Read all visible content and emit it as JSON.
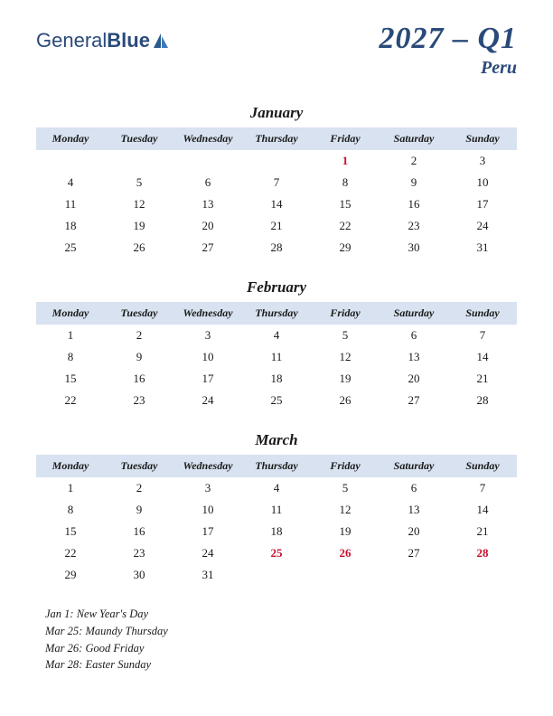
{
  "logo": {
    "part1": "General",
    "part2": "Blue"
  },
  "title": "2027 – Q1",
  "subtitle": "Peru",
  "colors": {
    "header_bg": "#d8e2f0",
    "accent": "#2a4a7a",
    "holiday": "#c8102e",
    "text": "#1a1a1a",
    "background": "#ffffff"
  },
  "day_headers": [
    "Monday",
    "Tuesday",
    "Wednesday",
    "Thursday",
    "Friday",
    "Saturday",
    "Sunday"
  ],
  "months": [
    {
      "name": "January",
      "weeks": [
        [
          "",
          "",
          "",
          "",
          "1",
          "2",
          "3"
        ],
        [
          "4",
          "5",
          "6",
          "7",
          "8",
          "9",
          "10"
        ],
        [
          "11",
          "12",
          "13",
          "14",
          "15",
          "16",
          "17"
        ],
        [
          "18",
          "19",
          "20",
          "21",
          "22",
          "23",
          "24"
        ],
        [
          "25",
          "26",
          "27",
          "28",
          "29",
          "30",
          "31"
        ]
      ],
      "holidays": [
        [
          0,
          4
        ]
      ]
    },
    {
      "name": "February",
      "weeks": [
        [
          "1",
          "2",
          "3",
          "4",
          "5",
          "6",
          "7"
        ],
        [
          "8",
          "9",
          "10",
          "11",
          "12",
          "13",
          "14"
        ],
        [
          "15",
          "16",
          "17",
          "18",
          "19",
          "20",
          "21"
        ],
        [
          "22",
          "23",
          "24",
          "25",
          "26",
          "27",
          "28"
        ]
      ],
      "holidays": []
    },
    {
      "name": "March",
      "weeks": [
        [
          "1",
          "2",
          "3",
          "4",
          "5",
          "6",
          "7"
        ],
        [
          "8",
          "9",
          "10",
          "11",
          "12",
          "13",
          "14"
        ],
        [
          "15",
          "16",
          "17",
          "18",
          "19",
          "20",
          "21"
        ],
        [
          "22",
          "23",
          "24",
          "25",
          "26",
          "27",
          "28"
        ],
        [
          "29",
          "30",
          "31",
          "",
          "",
          "",
          ""
        ]
      ],
      "holidays": [
        [
          3,
          3
        ],
        [
          3,
          4
        ],
        [
          3,
          6
        ]
      ]
    }
  ],
  "holiday_list": [
    "Jan 1: New Year's Day",
    "Mar 25: Maundy Thursday",
    "Mar 26: Good Friday",
    "Mar 28: Easter Sunday"
  ]
}
